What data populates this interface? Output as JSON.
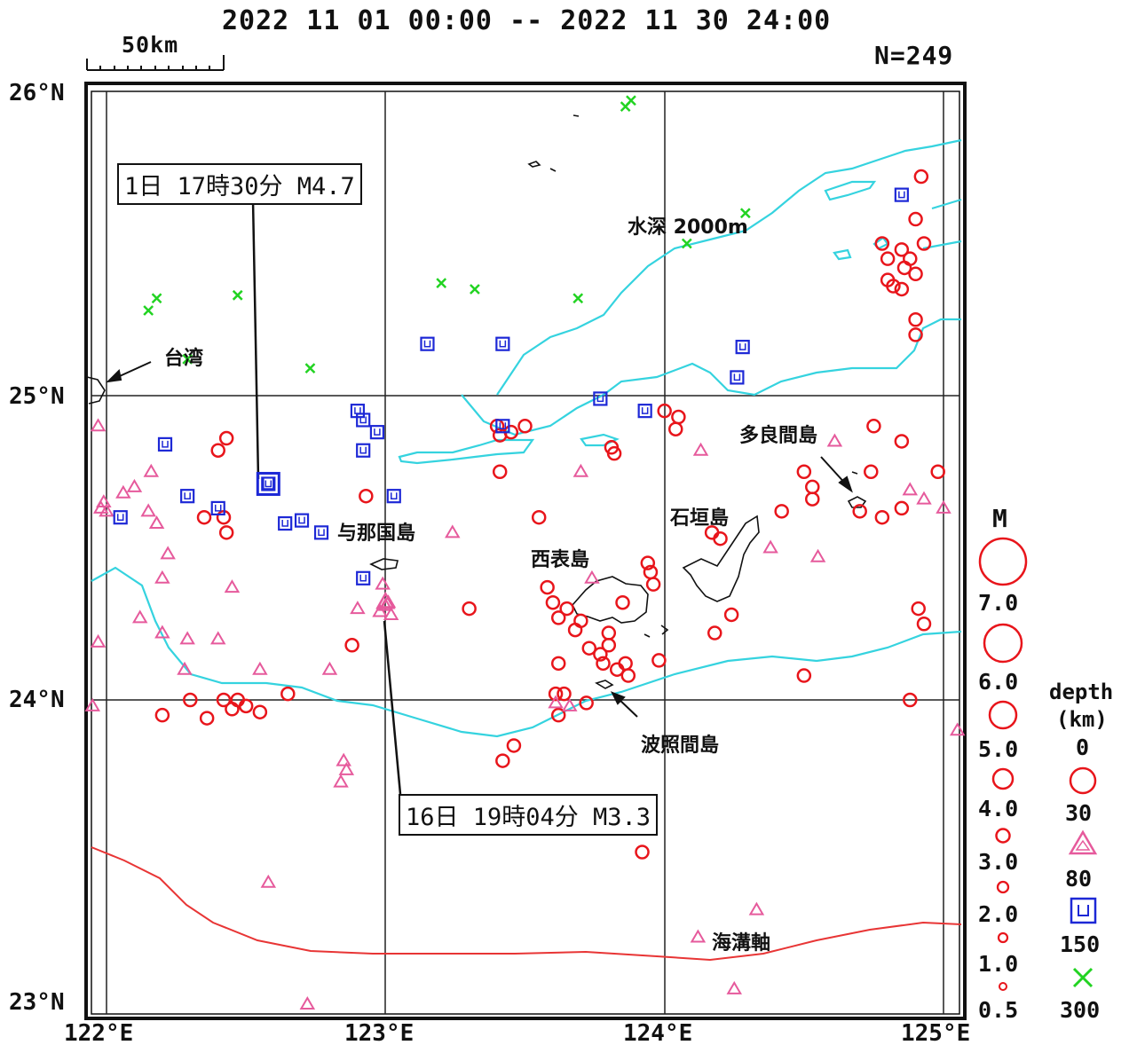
{
  "header": {
    "period": "2022 11 01 00:00 -- 2022 11 30 24:00",
    "count": "N=249",
    "scale_label": "50km"
  },
  "axes": {
    "lat_labels": [
      "26°N",
      "25°N",
      "24°N",
      "23°N"
    ],
    "lon_labels": [
      "122°E",
      "123°E",
      "124°E",
      "125°E"
    ]
  },
  "places": {
    "taiwan": "台湾",
    "yonaguni": "与那国島",
    "iriomote": "西表島",
    "ishigaki": "石垣島",
    "tarama": "多良間島",
    "hateruma": "波照間島",
    "depth_contour": "水深 2000m",
    "trench_axis": "海溝軸"
  },
  "callouts": {
    "event1": "1日 17時30分 M4.7",
    "event2": "16日 19時04分 M3.3"
  },
  "legend": {
    "magnitude_title": "M",
    "magnitudes": [
      "7.0",
      "6.0",
      "5.0",
      "4.0",
      "3.0",
      "2.0",
      "1.0",
      "0.5"
    ],
    "depth_title": "depth",
    "depth_unit": "(km)",
    "depths": [
      "0",
      "30",
      "80",
      "150",
      "300"
    ]
  },
  "colors": {
    "shallow": "#e8151b",
    "mid": "#e65a9c",
    "deep": "#1d28d6",
    "vdeep": "#22d322",
    "contour": "#35d3df",
    "trench": "#e83535"
  },
  "chart_data": {
    "type": "scatter",
    "lon_range": [
      122,
      125
    ],
    "lat_range": [
      23,
      26
    ],
    "shallow": [
      [
        122.35,
        24.6
      ],
      [
        122.4,
        24.82
      ],
      [
        122.43,
        24.86
      ],
      [
        122.42,
        24.6
      ],
      [
        122.43,
        24.55
      ],
      [
        122.2,
        23.95
      ],
      [
        122.3,
        24.0
      ],
      [
        122.36,
        23.94
      ],
      [
        122.42,
        24.0
      ],
      [
        122.45,
        23.97
      ],
      [
        122.47,
        24.0
      ],
      [
        122.5,
        23.98
      ],
      [
        122.55,
        23.96
      ],
      [
        122.65,
        24.02
      ],
      [
        122.88,
        24.18
      ],
      [
        122.93,
        24.67
      ],
      [
        123.3,
        24.3
      ],
      [
        123.4,
        24.9
      ],
      [
        123.41,
        24.87
      ],
      [
        123.45,
        24.88
      ],
      [
        123.41,
        24.75
      ],
      [
        123.46,
        23.85
      ],
      [
        123.42,
        23.8
      ],
      [
        123.5,
        24.9
      ],
      [
        123.55,
        24.6
      ],
      [
        123.58,
        24.37
      ],
      [
        123.6,
        24.32
      ],
      [
        123.62,
        24.27
      ],
      [
        123.65,
        24.3
      ],
      [
        123.7,
        24.26
      ],
      [
        123.62,
        24.12
      ],
      [
        123.68,
        24.23
      ],
      [
        123.73,
        24.17
      ],
      [
        123.77,
        24.15
      ],
      [
        123.8,
        24.18
      ],
      [
        123.78,
        24.12
      ],
      [
        123.83,
        24.1
      ],
      [
        123.86,
        24.12
      ],
      [
        123.8,
        24.22
      ],
      [
        123.85,
        24.32
      ],
      [
        123.94,
        24.45
      ],
      [
        123.95,
        24.42
      ],
      [
        123.96,
        24.38
      ],
      [
        123.98,
        24.13
      ],
      [
        123.61,
        24.02
      ],
      [
        123.64,
        24.02
      ],
      [
        123.62,
        23.95
      ],
      [
        123.72,
        23.99
      ],
      [
        123.87,
        24.08
      ],
      [
        123.92,
        23.5
      ],
      [
        124.0,
        24.95
      ],
      [
        124.05,
        24.93
      ],
      [
        124.04,
        24.89
      ],
      [
        124.17,
        24.55
      ],
      [
        124.2,
        24.53
      ],
      [
        124.18,
        24.22
      ],
      [
        124.24,
        24.28
      ],
      [
        124.42,
        24.62
      ],
      [
        124.5,
        24.75
      ],
      [
        124.53,
        24.7
      ],
      [
        124.53,
        24.66
      ],
      [
        124.5,
        24.08
      ],
      [
        124.7,
        24.62
      ],
      [
        124.74,
        24.75
      ],
      [
        124.78,
        24.6
      ],
      [
        124.85,
        24.63
      ],
      [
        124.85,
        24.85
      ],
      [
        124.75,
        24.9
      ],
      [
        124.88,
        24.0
      ],
      [
        124.91,
        24.3
      ],
      [
        124.93,
        24.25
      ],
      [
        124.98,
        24.75
      ],
      [
        124.78,
        25.5
      ],
      [
        124.8,
        25.45
      ],
      [
        124.85,
        25.48
      ],
      [
        124.88,
        25.45
      ],
      [
        124.8,
        25.38
      ],
      [
        124.82,
        25.36
      ],
      [
        124.85,
        25.35
      ],
      [
        124.9,
        25.4
      ],
      [
        124.86,
        25.42
      ],
      [
        124.9,
        25.25
      ],
      [
        124.9,
        25.2
      ],
      [
        124.92,
        25.72
      ],
      [
        124.9,
        25.58
      ],
      [
        124.93,
        25.5
      ],
      [
        123.81,
        24.83
      ],
      [
        123.82,
        24.81
      ]
    ],
    "mid": [
      [
        121.97,
        24.9
      ],
      [
        121.99,
        24.65
      ],
      [
        122.0,
        24.62
      ],
      [
        122.06,
        24.68
      ],
      [
        122.1,
        24.7
      ],
      [
        122.15,
        24.62
      ],
      [
        122.16,
        24.75
      ],
      [
        122.18,
        24.58
      ],
      [
        122.22,
        24.48
      ],
      [
        122.2,
        24.4
      ],
      [
        122.12,
        24.27
      ],
      [
        122.2,
        24.22
      ],
      [
        122.29,
        24.2
      ],
      [
        122.4,
        24.2
      ],
      [
        122.45,
        24.37
      ],
      [
        122.28,
        24.1
      ],
      [
        122.55,
        24.1
      ],
      [
        122.58,
        23.4
      ],
      [
        121.97,
        24.19
      ],
      [
        121.95,
        23.98
      ],
      [
        122.72,
        23.0
      ],
      [
        122.8,
        24.1
      ],
      [
        122.85,
        23.8
      ],
      [
        122.86,
        23.77
      ],
      [
        122.84,
        23.73
      ],
      [
        122.9,
        24.3
      ],
      [
        122.99,
        24.38
      ],
      [
        123.0,
        24.31
      ],
      [
        123.01,
        24.32
      ],
      [
        122.98,
        24.29
      ],
      [
        123.02,
        24.28
      ],
      [
        123.24,
        24.55
      ],
      [
        123.7,
        24.75
      ],
      [
        124.13,
        24.82
      ],
      [
        124.38,
        24.5
      ],
      [
        124.55,
        24.47
      ],
      [
        124.61,
        24.85
      ],
      [
        124.88,
        24.69
      ],
      [
        124.93,
        24.66
      ],
      [
        125.0,
        24.63
      ],
      [
        125.05,
        23.9
      ],
      [
        123.74,
        24.4
      ],
      [
        124.25,
        23.05
      ],
      [
        124.33,
        23.31
      ],
      [
        124.12,
        23.22
      ],
      [
        123.61,
        23.99
      ],
      [
        123.66,
        23.98
      ],
      [
        121.98,
        24.63
      ]
    ],
    "deep": [
      [
        122.21,
        24.84
      ],
      [
        122.29,
        24.67
      ],
      [
        122.4,
        24.63
      ],
      [
        122.58,
        24.71
      ],
      [
        122.64,
        24.58
      ],
      [
        122.7,
        24.59
      ],
      [
        122.77,
        24.55
      ],
      [
        122.9,
        24.95
      ],
      [
        122.92,
        24.92
      ],
      [
        122.97,
        24.88
      ],
      [
        122.92,
        24.82
      ],
      [
        123.03,
        24.67
      ],
      [
        122.92,
        24.4
      ],
      [
        123.15,
        25.17
      ],
      [
        123.42,
        25.17
      ],
      [
        123.42,
        24.9
      ],
      [
        123.77,
        24.99
      ],
      [
        123.93,
        24.95
      ],
      [
        124.28,
        25.16
      ],
      [
        124.26,
        25.06
      ],
      [
        124.85,
        25.66
      ],
      [
        122.05,
        24.6
      ]
    ],
    "vdeep": [
      [
        122.15,
        25.28
      ],
      [
        122.18,
        25.32
      ],
      [
        122.47,
        25.33
      ],
      [
        122.73,
        25.09
      ],
      [
        122.29,
        25.12
      ],
      [
        123.2,
        25.37
      ],
      [
        123.32,
        25.35
      ],
      [
        123.69,
        25.32
      ],
      [
        123.86,
        25.95
      ],
      [
        123.88,
        25.97
      ],
      [
        124.08,
        25.5
      ],
      [
        124.29,
        25.6
      ]
    ],
    "labeled_events": [
      {
        "label": "1日 17時30分 M4.7",
        "lon": 122.58,
        "lat": 24.71,
        "M": 4.7
      },
      {
        "label": "16日 19時04分 M3.3",
        "lon": 123.0,
        "lat": 24.32,
        "M": 3.3
      }
    ]
  }
}
